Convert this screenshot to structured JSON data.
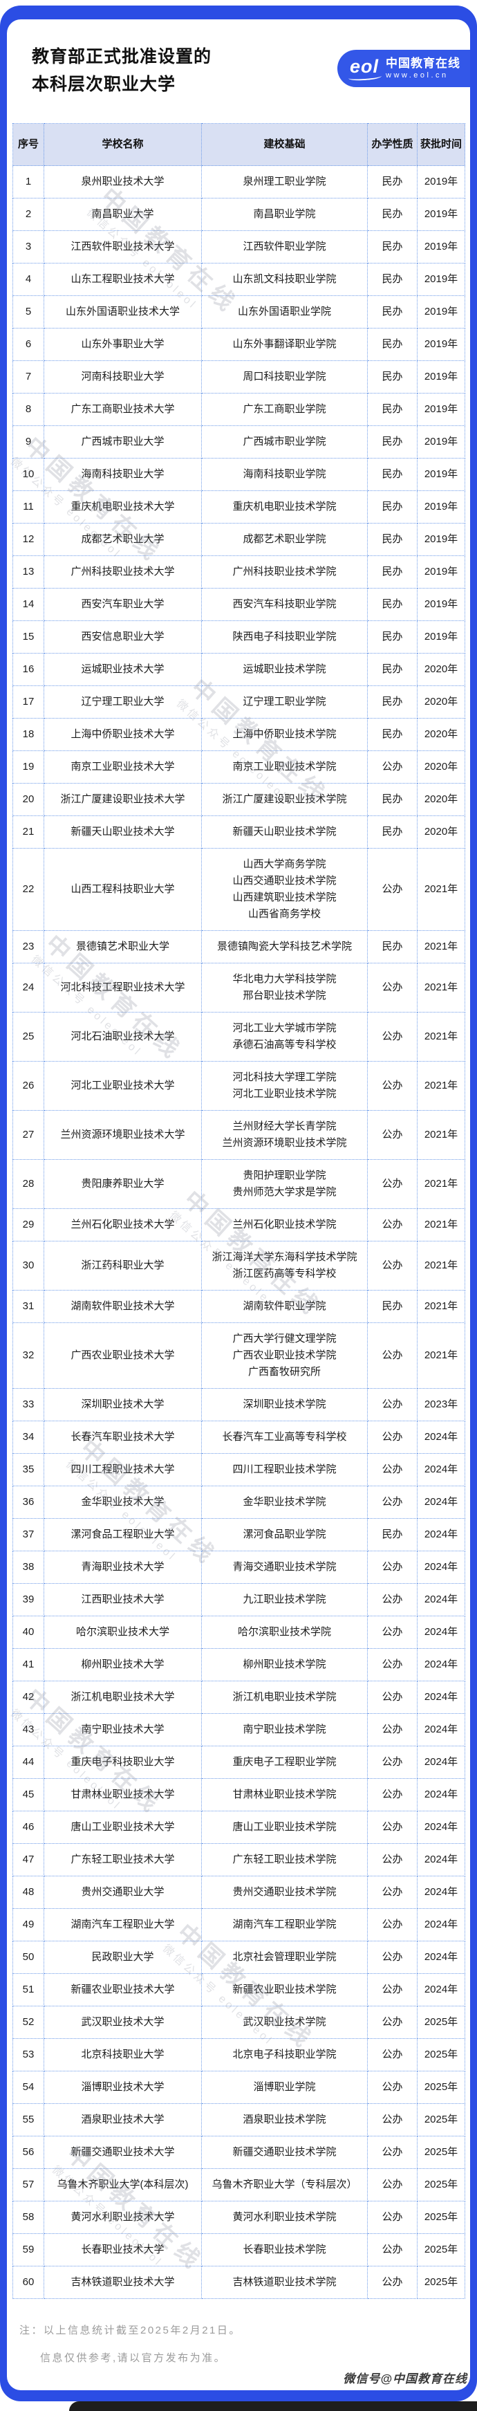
{
  "header": {
    "title_line1": "教育部正式批准设置的",
    "title_line2": "本科层次职业大学"
  },
  "logo": {
    "mark": "eol",
    "name": "中国教育在线",
    "url": "www.eol.cn"
  },
  "colors": {
    "frame_blue": "#2b4de4",
    "logo_blue": "#3357e8",
    "table_header_bg": "#d9e0f3",
    "dotted_border": "#6e9be8"
  },
  "table": {
    "headers": [
      "序号",
      "学校名称",
      "建校基础",
      "办学性质",
      "获批时间"
    ],
    "rows": [
      {
        "no": "1",
        "name": "泉州职业技术大学",
        "basis": [
          "泉州理工职业学院"
        ],
        "type": "民办",
        "year": "2019年"
      },
      {
        "no": "2",
        "name": "南昌职业大学",
        "basis": [
          "南昌职业学院"
        ],
        "type": "民办",
        "year": "2019年"
      },
      {
        "no": "3",
        "name": "江西软件职业技术大学",
        "basis": [
          "江西软件职业学院"
        ],
        "type": "民办",
        "year": "2019年"
      },
      {
        "no": "4",
        "name": "山东工程职业技术大学",
        "basis": [
          "山东凯文科技职业学院"
        ],
        "type": "民办",
        "year": "2019年"
      },
      {
        "no": "5",
        "name": "山东外国语职业技术大学",
        "basis": [
          "山东外国语职业学院"
        ],
        "type": "民办",
        "year": "2019年"
      },
      {
        "no": "6",
        "name": "山东外事职业大学",
        "basis": [
          "山东外事翻译职业学院"
        ],
        "type": "民办",
        "year": "2019年"
      },
      {
        "no": "7",
        "name": "河南科技职业大学",
        "basis": [
          "周口科技职业学院"
        ],
        "type": "民办",
        "year": "2019年"
      },
      {
        "no": "8",
        "name": "广东工商职业技术大学",
        "basis": [
          "广东工商职业学院"
        ],
        "type": "民办",
        "year": "2019年"
      },
      {
        "no": "9",
        "name": "广西城市职业大学",
        "basis": [
          "广西城市职业学院"
        ],
        "type": "民办",
        "year": "2019年"
      },
      {
        "no": "10",
        "name": "海南科技职业大学",
        "basis": [
          "海南科技职业学院"
        ],
        "type": "民办",
        "year": "2019年"
      },
      {
        "no": "11",
        "name": "重庆机电职业技术大学",
        "basis": [
          "重庆机电职业技术学院"
        ],
        "type": "民办",
        "year": "2019年"
      },
      {
        "no": "12",
        "name": "成都艺术职业大学",
        "basis": [
          "成都艺术职业学院"
        ],
        "type": "民办",
        "year": "2019年"
      },
      {
        "no": "13",
        "name": "广州科技职业技术大学",
        "basis": [
          "广州科技职业技术学院"
        ],
        "type": "民办",
        "year": "2019年"
      },
      {
        "no": "14",
        "name": "西安汽车职业大学",
        "basis": [
          "西安汽车科技职业学院"
        ],
        "type": "民办",
        "year": "2019年"
      },
      {
        "no": "15",
        "name": "西安信息职业大学",
        "basis": [
          "陕西电子科技职业学院"
        ],
        "type": "民办",
        "year": "2019年"
      },
      {
        "no": "16",
        "name": "运城职业技术大学",
        "basis": [
          "运城职业技术学院"
        ],
        "type": "民办",
        "year": "2020年"
      },
      {
        "no": "17",
        "name": "辽宁理工职业大学",
        "basis": [
          "辽宁理工职业学院"
        ],
        "type": "民办",
        "year": "2020年"
      },
      {
        "no": "18",
        "name": "上海中侨职业技术大学",
        "basis": [
          "上海中侨职业技术学院"
        ],
        "type": "民办",
        "year": "2020年"
      },
      {
        "no": "19",
        "name": "南京工业职业技术大学",
        "basis": [
          "南京工业职业技术学院"
        ],
        "type": "公办",
        "year": "2020年"
      },
      {
        "no": "20",
        "name": "浙江广厦建设职业技术大学",
        "basis": [
          "浙江广厦建设职业技术学院"
        ],
        "type": "民办",
        "year": "2020年"
      },
      {
        "no": "21",
        "name": "新疆天山职业技术大学",
        "basis": [
          "新疆天山职业技术学院"
        ],
        "type": "民办",
        "year": "2020年"
      },
      {
        "no": "22",
        "name": "山西工程科技职业大学",
        "basis": [
          "山西大学商务学院",
          "山西交通职业技术学院",
          "山西建筑职业技术学院",
          "山西省商务学校"
        ],
        "type": "公办",
        "year": "2021年"
      },
      {
        "no": "23",
        "name": "景德镇艺术职业大学",
        "basis": [
          "景德镇陶瓷大学科技艺术学院"
        ],
        "type": "民办",
        "year": "2021年"
      },
      {
        "no": "24",
        "name": "河北科技工程职业技术大学",
        "basis": [
          "华北电力大学科技学院",
          "邢台职业技术学院"
        ],
        "type": "公办",
        "year": "2021年"
      },
      {
        "no": "25",
        "name": "河北石油职业技术大学",
        "basis": [
          "河北工业大学城市学院",
          "承德石油高等专科学校"
        ],
        "type": "公办",
        "year": "2021年"
      },
      {
        "no": "26",
        "name": "河北工业职业技术大学",
        "basis": [
          "河北科技大学理工学院",
          "河北工业职业技术学院"
        ],
        "type": "公办",
        "year": "2021年"
      },
      {
        "no": "27",
        "name": "兰州资源环境职业技术大学",
        "basis": [
          "兰州财经大学长青学院",
          "兰州资源环境职业技术学院"
        ],
        "type": "公办",
        "year": "2021年"
      },
      {
        "no": "28",
        "name": "贵阳康养职业大学",
        "basis": [
          "贵阳护理职业学院",
          "贵州师范大学求是学院"
        ],
        "type": "公办",
        "year": "2021年"
      },
      {
        "no": "29",
        "name": "兰州石化职业技术大学",
        "basis": [
          "兰州石化职业技术学院"
        ],
        "type": "公办",
        "year": "2021年"
      },
      {
        "no": "30",
        "name": "浙江药科职业大学",
        "basis": [
          "浙江海洋大学东海科学技术学院",
          "浙江医药高等专科学校"
        ],
        "type": "公办",
        "year": "2021年"
      },
      {
        "no": "31",
        "name": "湖南软件职业技术大学",
        "basis": [
          "湖南软件职业学院"
        ],
        "type": "民办",
        "year": "2021年"
      },
      {
        "no": "32",
        "name": "广西农业职业技术大学",
        "basis": [
          "广西大学行健文理学院",
          "广西农业职业技术学院",
          "广西畜牧研究所"
        ],
        "type": "公办",
        "year": "2021年"
      },
      {
        "no": "33",
        "name": "深圳职业技术大学",
        "basis": [
          "深圳职业技术学院"
        ],
        "type": "公办",
        "year": "2023年"
      },
      {
        "no": "34",
        "name": "长春汽车职业技术大学",
        "basis": [
          "长春汽车工业高等专科学校"
        ],
        "type": "公办",
        "year": "2024年"
      },
      {
        "no": "35",
        "name": "四川工程职业技术大学",
        "basis": [
          "四川工程职业技术学院"
        ],
        "type": "公办",
        "year": "2024年"
      },
      {
        "no": "36",
        "name": "金华职业技术大学",
        "basis": [
          "金华职业技术学院"
        ],
        "type": "公办",
        "year": "2024年"
      },
      {
        "no": "37",
        "name": "漯河食品工程职业大学",
        "basis": [
          "漯河食品职业学院"
        ],
        "type": "民办",
        "year": "2024年"
      },
      {
        "no": "38",
        "name": "青海职业技术大学",
        "basis": [
          "青海交通职业技术学院"
        ],
        "type": "公办",
        "year": "2024年"
      },
      {
        "no": "39",
        "name": "江西职业技术大学",
        "basis": [
          "九江职业技术学院"
        ],
        "type": "公办",
        "year": "2024年"
      },
      {
        "no": "40",
        "name": "哈尔滨职业技术大学",
        "basis": [
          "哈尔滨职业技术学院"
        ],
        "type": "公办",
        "year": "2024年"
      },
      {
        "no": "41",
        "name": "柳州职业技术大学",
        "basis": [
          "柳州职业技术学院"
        ],
        "type": "公办",
        "year": "2024年"
      },
      {
        "no": "42",
        "name": "浙江机电职业技术大学",
        "basis": [
          "浙江机电职业技术学院"
        ],
        "type": "公办",
        "year": "2024年"
      },
      {
        "no": "43",
        "name": "南宁职业技术大学",
        "basis": [
          "南宁职业技术学院"
        ],
        "type": "公办",
        "year": "2024年"
      },
      {
        "no": "44",
        "name": "重庆电子科技职业大学",
        "basis": [
          "重庆电子工程职业学院"
        ],
        "type": "公办",
        "year": "2024年"
      },
      {
        "no": "45",
        "name": "甘肃林业职业技术大学",
        "basis": [
          "甘肃林业职业技术学院"
        ],
        "type": "公办",
        "year": "2024年"
      },
      {
        "no": "46",
        "name": "唐山工业职业技术大学",
        "basis": [
          "唐山工业职业技术学院"
        ],
        "type": "公办",
        "year": "2024年"
      },
      {
        "no": "47",
        "name": "广东轻工职业技术大学",
        "basis": [
          "广东轻工职业技术学院"
        ],
        "type": "公办",
        "year": "2024年"
      },
      {
        "no": "48",
        "name": "贵州交通职业大学",
        "basis": [
          "贵州交通职业技术学院"
        ],
        "type": "公办",
        "year": "2024年"
      },
      {
        "no": "49",
        "name": "湖南汽车工程职业大学",
        "basis": [
          "湖南汽车工程职业学院"
        ],
        "type": "公办",
        "year": "2024年"
      },
      {
        "no": "50",
        "name": "民政职业大学",
        "basis": [
          "北京社会管理职业学院"
        ],
        "type": "公办",
        "year": "2024年"
      },
      {
        "no": "51",
        "name": "新疆农业职业技术大学",
        "basis": [
          "新疆农业职业技术学院"
        ],
        "type": "公办",
        "year": "2024年"
      },
      {
        "no": "52",
        "name": "武汉职业技术大学",
        "basis": [
          "武汉职业技术学院"
        ],
        "type": "公办",
        "year": "2025年"
      },
      {
        "no": "53",
        "name": "北京科技职业大学",
        "basis": [
          "北京电子科技职业学院"
        ],
        "type": "公办",
        "year": "2025年"
      },
      {
        "no": "54",
        "name": "淄博职业技术大学",
        "basis": [
          "淄博职业学院"
        ],
        "type": "公办",
        "year": "2025年"
      },
      {
        "no": "55",
        "name": "酒泉职业技术大学",
        "basis": [
          "酒泉职业技术学院"
        ],
        "type": "公办",
        "year": "2025年"
      },
      {
        "no": "56",
        "name": "新疆交通职业技术大学",
        "basis": [
          "新疆交通职业技术学院"
        ],
        "type": "公办",
        "year": "2025年"
      },
      {
        "no": "57",
        "name": "乌鲁木齐职业大学(本科层次)",
        "basis": [
          "乌鲁木齐职业大学（专科层次）"
        ],
        "type": "公办",
        "year": "2025年"
      },
      {
        "no": "58",
        "name": "黄河水利职业技术大学",
        "basis": [
          "黄河水利职业技术学院"
        ],
        "type": "公办",
        "year": "2025年"
      },
      {
        "no": "59",
        "name": "长春职业技术大学",
        "basis": [
          "长春职业技术学院"
        ],
        "type": "公办",
        "year": "2025年"
      },
      {
        "no": "60",
        "name": "吉林铁道职业技术大学",
        "basis": [
          "吉林铁道职业技术学院"
        ],
        "type": "公办",
        "year": "2025年"
      }
    ]
  },
  "note": {
    "line1": "注：以上信息统计截至2025年2月21日。",
    "line2": "信息仅供参考,请以官方发布为准。"
  },
  "watermark": {
    "diagonal_large": "中国教育在线",
    "diagonal_small": "微信公众号 eoleoleol",
    "handle": "微信号@中国教育在线"
  }
}
